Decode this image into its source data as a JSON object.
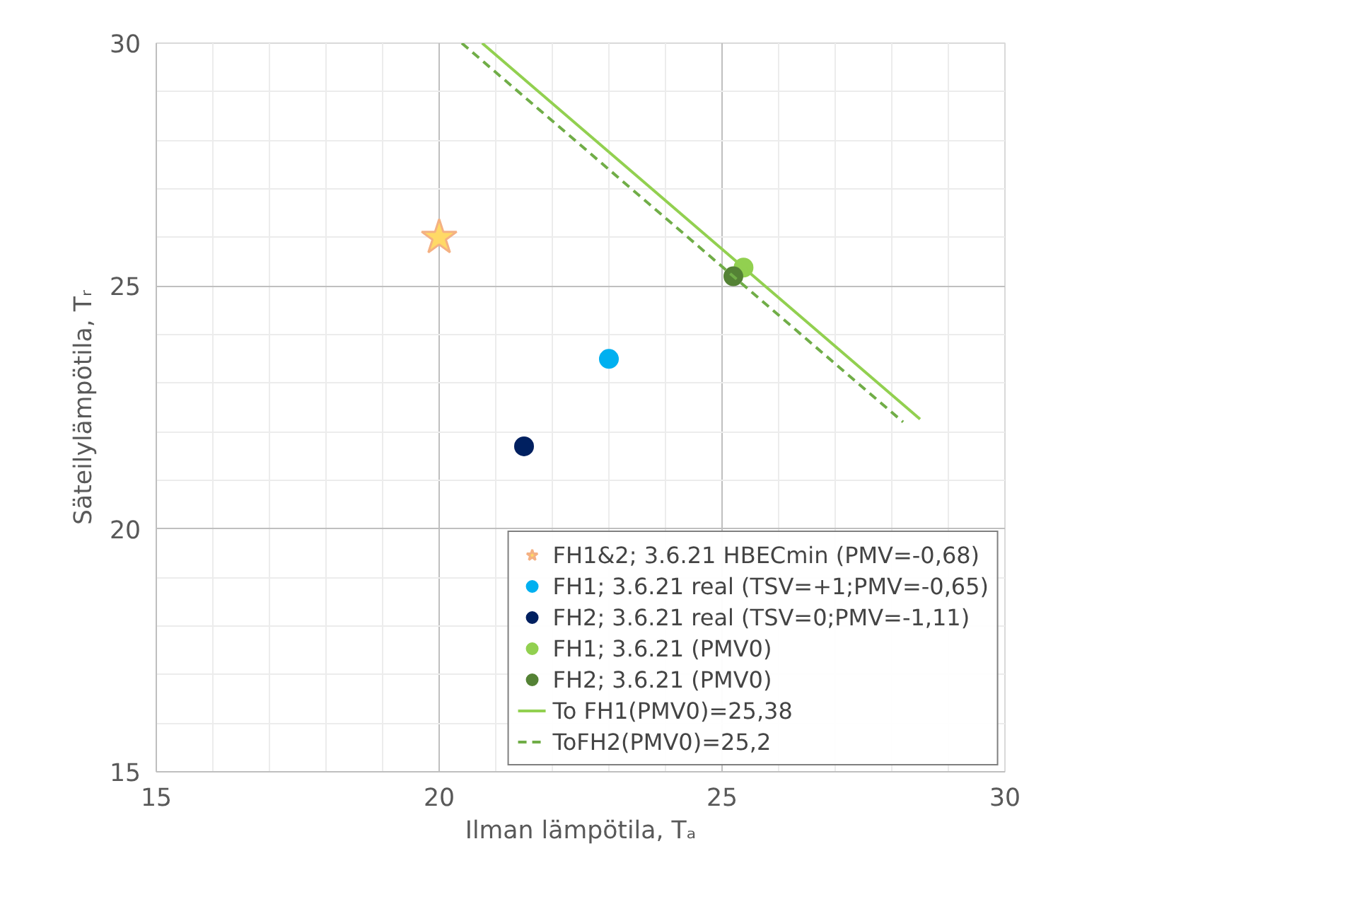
{
  "chart_data": {
    "type": "scatter",
    "xlabel": "Ilman lämpötila, Tₐ",
    "ylabel": "Säteilylämpötila, Tᵣ",
    "xlim": [
      15,
      30
    ],
    "ylim": [
      15,
      30
    ],
    "xticks": [
      15,
      20,
      25,
      30
    ],
    "yticks": [
      15,
      20,
      25,
      30
    ],
    "grid": true,
    "legend": "bottom right",
    "series": [
      {
        "name": "FH1&2; 3.6.21 HBECmin (PMV=-0,68)",
        "marker": "star",
        "color": "#ffd966",
        "x": [
          20
        ],
        "values": [
          26
        ]
      },
      {
        "name": "FH1; 3.6.21 real (TSV=+1;PMV=-0,65)",
        "marker": "circle",
        "color": "#00b0f0",
        "x": [
          23
        ],
        "values": [
          23.5
        ]
      },
      {
        "name": "FH2; 3.6.21 real (TSV=0;PMV=-1,11)",
        "marker": "circle",
        "color": "#002060",
        "x": [
          21.5
        ],
        "values": [
          21.7
        ]
      },
      {
        "name": "FH1; 3.6.21 (PMV0)",
        "marker": "circle",
        "color": "#92d050",
        "x": [
          25.38
        ],
        "values": [
          25.38
        ]
      },
      {
        "name": "FH2; 3.6.21 (PMV0)",
        "marker": "circle",
        "color": "#548235",
        "x": [
          25.2
        ],
        "values": [
          25.2
        ]
      },
      {
        "name": "To FH1(PMV0)=25,38",
        "type": "line",
        "line_style": "solid",
        "color": "#92d050",
        "x": [
          20.76,
          28.5
        ],
        "values": [
          30,
          22.26
        ]
      },
      {
        "name": "ToFH2(PMV0)=25,2",
        "type": "line",
        "line_style": "dashed",
        "color": "#70ad47",
        "x": [
          20.4,
          28.2
        ],
        "values": [
          30,
          22.2
        ]
      }
    ]
  }
}
